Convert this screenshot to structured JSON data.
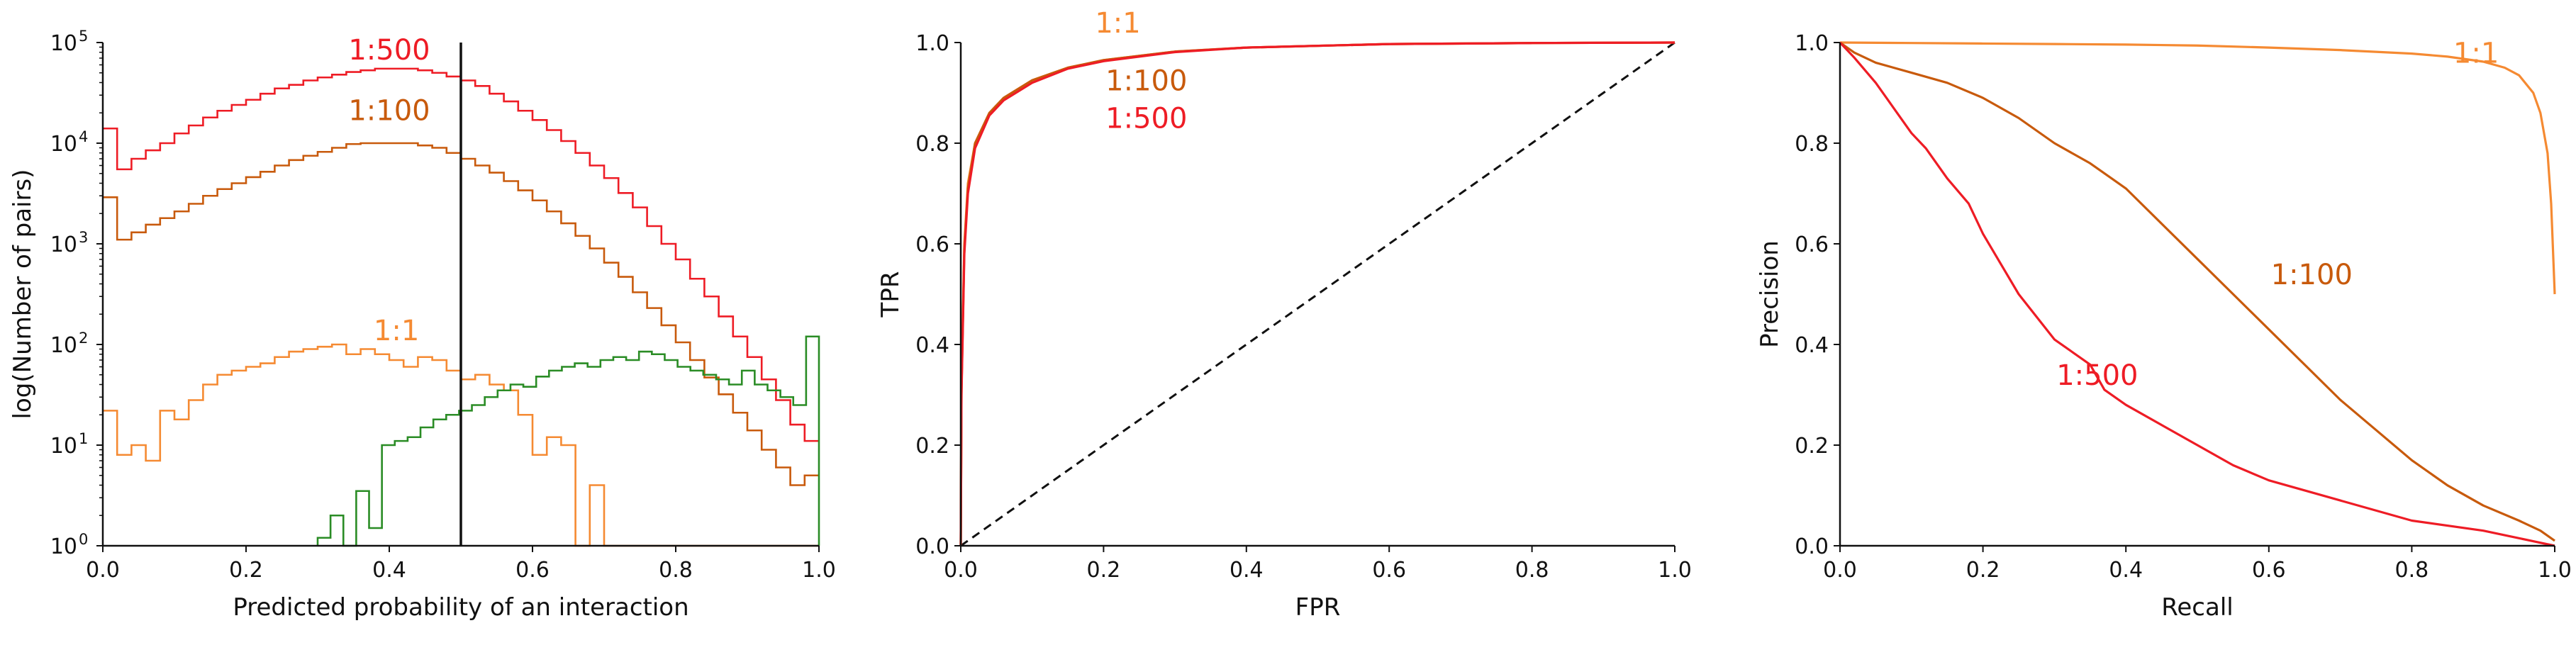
{
  "chart_data": [
    {
      "type": "histogram",
      "xlabel": "Predicted probability of an interaction",
      "ylabel": "log(Number of pairs)",
      "xlim": [
        0.0,
        1.0
      ],
      "ylim_log10": [
        0,
        5
      ],
      "yscale": "log",
      "xticks": [
        "0.0",
        "0.2",
        "0.4",
        "0.6",
        "0.8",
        "1.0"
      ],
      "yticks": [
        {
          "base": "10",
          "exp": "0"
        },
        {
          "base": "10",
          "exp": "1"
        },
        {
          "base": "10",
          "exp": "2"
        },
        {
          "base": "10",
          "exp": "3"
        },
        {
          "base": "10",
          "exp": "4"
        },
        {
          "base": "10",
          "exp": "5"
        }
      ],
      "vline_x": 0.5,
      "grid": false,
      "annotations": [
        {
          "text": "1:500",
          "x": 0.4,
          "y": 68000,
          "color": "#ee1c25"
        },
        {
          "text": "1:100",
          "x": 0.4,
          "y": 17000,
          "color": "#c85a0c"
        },
        {
          "text": "1:1",
          "x": 0.41,
          "y": 110,
          "color": "#f58a32"
        }
      ],
      "series": [
        {
          "color": "#ee1c25",
          "x_start": 0.0,
          "bin_width": 0.02,
          "values": [
            14000,
            5500,
            7000,
            8500,
            10000,
            12500,
            15000,
            18000,
            21000,
            24000,
            27000,
            31000,
            35000,
            38000,
            42000,
            45000,
            48000,
            51000,
            53000,
            55000,
            55000,
            55000,
            53000,
            50000,
            46000,
            42000,
            37000,
            31000,
            26000,
            21000,
            17000,
            13500,
            10500,
            8000,
            6000,
            4500,
            3200,
            2300,
            1500,
            1000,
            700,
            450,
            300,
            190,
            120,
            75,
            45,
            28,
            16,
            11
          ]
        },
        {
          "color": "#c85a0c",
          "x_start": 0.0,
          "bin_width": 0.02,
          "values": [
            2900,
            1100,
            1300,
            1550,
            1800,
            2100,
            2500,
            3000,
            3500,
            4000,
            4600,
            5200,
            6000,
            6800,
            7500,
            8200,
            9000,
            9800,
            10000,
            10000,
            10000,
            10000,
            9500,
            9000,
            8000,
            7000,
            6000,
            5100,
            4200,
            3400,
            2700,
            2100,
            1600,
            1200,
            900,
            650,
            470,
            330,
            230,
            155,
            105,
            70,
            47,
            32,
            21,
            14,
            9,
            6,
            4,
            5
          ]
        },
        {
          "color": "#f58a32",
          "x_start": 0.0,
          "bin_width": 0.02,
          "values": [
            22,
            8,
            10,
            7,
            22,
            18,
            28,
            40,
            50,
            55,
            60,
            65,
            75,
            85,
            90,
            95,
            100,
            80,
            90,
            80,
            70,
            60,
            75,
            70,
            55,
            45,
            50,
            40,
            35,
            20,
            8,
            12,
            10,
            1,
            4,
            1,
            1,
            1,
            1,
            1,
            1,
            1,
            1,
            1,
            1,
            1,
            1,
            1,
            1,
            1
          ]
        },
        {
          "color": "#2a8c25",
          "x_start": 0.0,
          "bin_width": 0.02,
          "values": [
            1,
            1,
            1,
            1,
            1,
            1,
            1,
            1,
            1,
            1,
            1,
            1,
            1,
            1,
            1,
            1,
            1,
            1,
            1,
            1,
            1,
            1,
            1,
            1,
            1,
            1,
            1,
            1,
            1,
            1,
            1,
            1,
            1,
            1,
            1,
            1,
            1,
            1,
            1,
            1,
            1,
            1,
            1,
            1,
            1,
            1,
            1,
            1,
            1,
            1
          ],
          "values_from_0.30": [
            1.2,
            2,
            1,
            3.5,
            1.5,
            10,
            11,
            12,
            15,
            18,
            20,
            22,
            25,
            30,
            35,
            40,
            38,
            48,
            55,
            60,
            65,
            60,
            70,
            75,
            70,
            85,
            80,
            70,
            60,
            55,
            50,
            45,
            40,
            55,
            40,
            35,
            30,
            25,
            120
          ]
        }
      ]
    },
    {
      "type": "line",
      "xlabel": "FPR",
      "ylabel": "TPR",
      "xlim": [
        0.0,
        1.0
      ],
      "ylim": [
        0.0,
        1.0
      ],
      "xticks": [
        "0.0",
        "0.2",
        "0.4",
        "0.6",
        "0.8",
        "1.0"
      ],
      "yticks": [
        "0.0",
        "0.2",
        "0.4",
        "0.6",
        "0.8",
        "1.0"
      ],
      "grid": false,
      "diagonal": {
        "style": "dashed",
        "color": "#111111"
      },
      "annotations": [
        {
          "text": "1:1",
          "x": 0.22,
          "y": 1.02,
          "color": "#f58a32"
        },
        {
          "text": "1:100",
          "x": 0.26,
          "y": 0.905,
          "color": "#c85a0c"
        },
        {
          "text": "1:500",
          "x": 0.26,
          "y": 0.83,
          "color": "#ee1c25"
        }
      ],
      "series": [
        {
          "color": "#f58a32",
          "x": [
            0,
            0.001,
            0.005,
            0.01,
            0.02,
            0.04,
            0.06,
            0.1,
            0.15,
            0.2,
            0.3,
            0.4,
            0.6,
            0.8,
            1.0
          ],
          "y": [
            0,
            0.32,
            0.6,
            0.72,
            0.8,
            0.86,
            0.89,
            0.925,
            0.95,
            0.965,
            0.982,
            0.99,
            0.997,
            0.999,
            1.0
          ]
        },
        {
          "color": "#c85a0c",
          "x": [
            0,
            0.001,
            0.005,
            0.01,
            0.02,
            0.04,
            0.06,
            0.1,
            0.15,
            0.2,
            0.3,
            0.4,
            0.6,
            0.8,
            1.0
          ],
          "y": [
            0,
            0.31,
            0.59,
            0.71,
            0.8,
            0.86,
            0.89,
            0.925,
            0.95,
            0.965,
            0.982,
            0.99,
            0.997,
            0.999,
            1.0
          ]
        },
        {
          "color": "#ee1c25",
          "x": [
            0,
            0.001,
            0.005,
            0.01,
            0.02,
            0.04,
            0.06,
            0.1,
            0.15,
            0.2,
            0.3,
            0.4,
            0.6,
            0.8,
            1.0
          ],
          "y": [
            0,
            0.3,
            0.58,
            0.7,
            0.79,
            0.855,
            0.885,
            0.92,
            0.948,
            0.963,
            0.981,
            0.99,
            0.997,
            0.999,
            1.0
          ]
        }
      ]
    },
    {
      "type": "line",
      "xlabel": "Recall",
      "ylabel": "Precision",
      "xlim": [
        0.0,
        1.0
      ],
      "ylim": [
        0.0,
        1.0
      ],
      "xticks": [
        "0.0",
        "0.2",
        "0.4",
        "0.6",
        "0.8",
        "1.0"
      ],
      "yticks": [
        "0.0",
        "0.2",
        "0.4",
        "0.6",
        "0.8",
        "1.0"
      ],
      "grid": false,
      "annotations": [
        {
          "text": "1:1",
          "x": 0.89,
          "y": 0.96,
          "color": "#f58a32"
        },
        {
          "text": "1:100",
          "x": 0.66,
          "y": 0.52,
          "color": "#c85a0c"
        },
        {
          "text": "1:500",
          "x": 0.36,
          "y": 0.32,
          "color": "#ee1c25"
        }
      ],
      "series": [
        {
          "color": "#f58a32",
          "x": [
            0,
            0.1,
            0.2,
            0.3,
            0.4,
            0.5,
            0.6,
            0.7,
            0.8,
            0.85,
            0.9,
            0.93,
            0.95,
            0.97,
            0.98,
            0.99,
            0.995,
            1.0
          ],
          "y": [
            1,
            0.999,
            0.998,
            0.997,
            0.996,
            0.994,
            0.99,
            0.985,
            0.978,
            0.972,
            0.962,
            0.95,
            0.935,
            0.9,
            0.86,
            0.78,
            0.68,
            0.5
          ]
        },
        {
          "color": "#c85a0c",
          "x": [
            0,
            0.02,
            0.05,
            0.1,
            0.15,
            0.2,
            0.25,
            0.3,
            0.35,
            0.4,
            0.45,
            0.5,
            0.55,
            0.6,
            0.65,
            0.7,
            0.75,
            0.8,
            0.85,
            0.9,
            0.95,
            0.98,
            1.0
          ],
          "y": [
            1,
            0.98,
            0.96,
            0.94,
            0.92,
            0.89,
            0.85,
            0.8,
            0.76,
            0.71,
            0.64,
            0.57,
            0.5,
            0.43,
            0.36,
            0.29,
            0.23,
            0.17,
            0.12,
            0.08,
            0.05,
            0.03,
            0.01
          ]
        },
        {
          "color": "#ee1c25",
          "x": [
            0,
            0.02,
            0.05,
            0.08,
            0.1,
            0.12,
            0.15,
            0.18,
            0.2,
            0.25,
            0.3,
            0.35,
            0.37,
            0.4,
            0.45,
            0.5,
            0.55,
            0.6,
            0.7,
            0.8,
            0.9,
            1.0
          ],
          "y": [
            1,
            0.97,
            0.92,
            0.86,
            0.82,
            0.79,
            0.73,
            0.68,
            0.62,
            0.5,
            0.41,
            0.36,
            0.31,
            0.28,
            0.24,
            0.2,
            0.16,
            0.13,
            0.09,
            0.05,
            0.03,
            0.0
          ]
        }
      ]
    }
  ]
}
